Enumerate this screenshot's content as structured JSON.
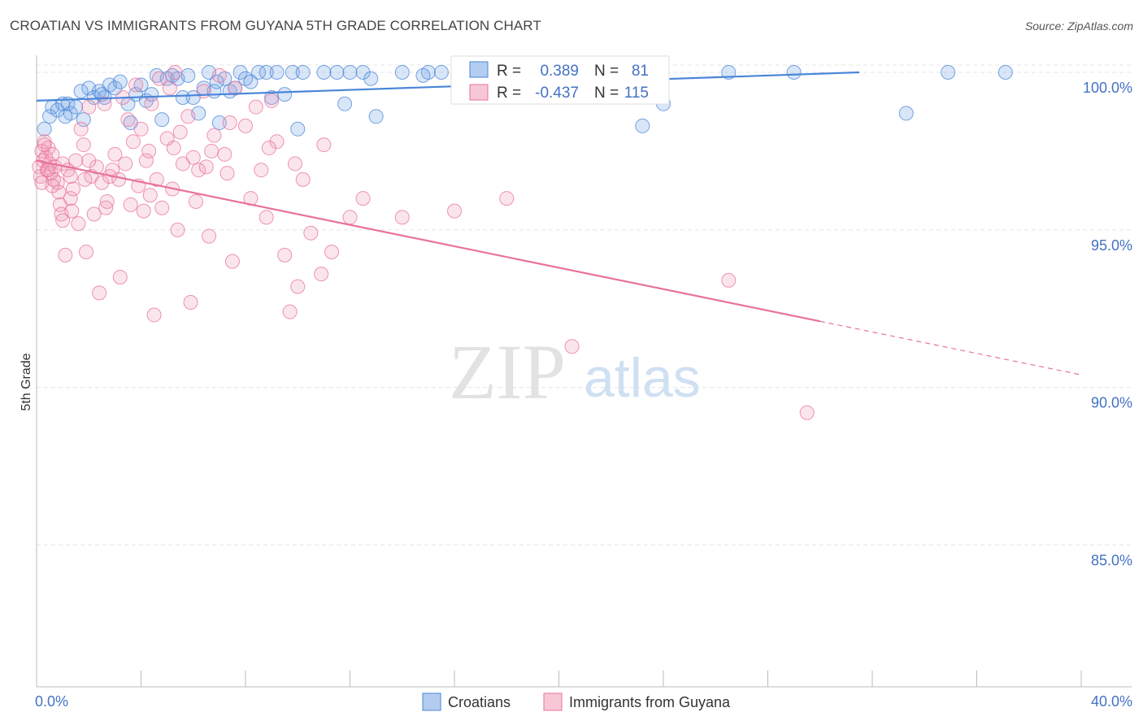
{
  "header": {
    "title": "CROATIAN VS IMMIGRANTS FROM GUYANA 5TH GRADE CORRELATION CHART",
    "source": "Source: ZipAtlas.com"
  },
  "watermark": {
    "zip": "ZIP",
    "atlas": "atlas"
  },
  "stats": {
    "croatians": {
      "r_label": "R =",
      "r_value": "0.389",
      "n_label": "N =",
      "n_value": "81"
    },
    "guyana": {
      "r_label": "R =",
      "r_value": "-0.437",
      "n_label": "N =",
      "n_value": "115"
    }
  },
  "legend": {
    "croatians": "Croatians",
    "guyana": "Immigrants from Guyana"
  },
  "chart_data": {
    "type": "scatter",
    "title": "CROATIAN VS IMMIGRANTS FROM GUYANA 5TH GRADE CORRELATION CHART",
    "xlabel": "",
    "ylabel": "5th Grade",
    "xlim": [
      0,
      40
    ],
    "ylim": [
      80.5,
      100.8
    ],
    "x_tick_labels": [
      "0.0%",
      "40.0%"
    ],
    "y_ticks": [
      100,
      95,
      90,
      85
    ],
    "y_tick_labels": [
      "100.0%",
      "95.0%",
      "90.0%",
      "85.0%"
    ],
    "grid": true,
    "legend_position": "bottom-center",
    "colors": {
      "croatians": "#4a86d8",
      "guyana": "#e8729a"
    },
    "series": [
      {
        "name": "Croatians",
        "color": "#4a86d8",
        "trend": {
          "x0": 0,
          "y0": 99.1,
          "x1": 31.5,
          "y1": 100.0
        },
        "points": [
          [
            0.3,
            98.2
          ],
          [
            0.5,
            98.6
          ],
          [
            0.6,
            98.9
          ],
          [
            0.8,
            98.8
          ],
          [
            1.0,
            99.0
          ],
          [
            1.2,
            99.0
          ],
          [
            1.3,
            98.7
          ],
          [
            1.5,
            98.9
          ],
          [
            1.7,
            99.4
          ],
          [
            1.8,
            98.5
          ],
          [
            2.0,
            99.5
          ],
          [
            2.2,
            99.2
          ],
          [
            2.4,
            99.4
          ],
          [
            2.6,
            99.2
          ],
          [
            2.8,
            99.6
          ],
          [
            3.0,
            99.5
          ],
          [
            3.2,
            99.7
          ],
          [
            3.5,
            99.0
          ],
          [
            3.6,
            98.4
          ],
          [
            3.8,
            99.3
          ],
          [
            4.0,
            99.6
          ],
          [
            4.2,
            99.1
          ],
          [
            4.4,
            99.3
          ],
          [
            4.6,
            99.9
          ],
          [
            4.8,
            98.5
          ],
          [
            5.0,
            99.8
          ],
          [
            5.2,
            99.9
          ],
          [
            5.4,
            99.8
          ],
          [
            5.6,
            99.2
          ],
          [
            5.8,
            99.9
          ],
          [
            6.0,
            99.2
          ],
          [
            6.2,
            98.7
          ],
          [
            6.4,
            99.5
          ],
          [
            6.6,
            100.0
          ],
          [
            6.8,
            99.4
          ],
          [
            7.0,
            98.4
          ],
          [
            7.2,
            99.8
          ],
          [
            7.4,
            99.4
          ],
          [
            7.6,
            99.5
          ],
          [
            7.8,
            100.0
          ],
          [
            8.0,
            99.8
          ],
          [
            8.2,
            99.7
          ],
          [
            8.5,
            100.0
          ],
          [
            8.8,
            100.0
          ],
          [
            9.0,
            99.2
          ],
          [
            9.2,
            100.0
          ],
          [
            9.5,
            99.3
          ],
          [
            9.8,
            100.0
          ],
          [
            10.0,
            98.2
          ],
          [
            10.2,
            100.0
          ],
          [
            11.0,
            100.0
          ],
          [
            11.5,
            100.0
          ],
          [
            12.0,
            100.0
          ],
          [
            11.8,
            99.0
          ],
          [
            12.5,
            100.0
          ],
          [
            12.8,
            99.8
          ],
          [
            13.0,
            98.6
          ],
          [
            14.0,
            100.0
          ],
          [
            15.0,
            100.0
          ],
          [
            15.5,
            100.0
          ],
          [
            16.5,
            100.0
          ],
          [
            17.0,
            100.0
          ],
          [
            17.8,
            100.0
          ],
          [
            18.5,
            100.0
          ],
          [
            19.0,
            99.6
          ],
          [
            19.5,
            99.8
          ],
          [
            20.0,
            100.0
          ],
          [
            21.0,
            100.0
          ],
          [
            22.0,
            100.0
          ],
          [
            23.0,
            99.9
          ],
          [
            23.2,
            98.3
          ],
          [
            24.0,
            99.0
          ],
          [
            26.5,
            100.0
          ],
          [
            29.0,
            100.0
          ],
          [
            33.3,
            98.7
          ],
          [
            34.9,
            100.0
          ],
          [
            37.1,
            100.0
          ],
          [
            1.1,
            98.6
          ],
          [
            2.5,
            99.3
          ],
          [
            6.9,
            99.7
          ],
          [
            14.8,
            99.9
          ]
        ]
      },
      {
        "name": "Immigrants from Guyana",
        "color": "#e8729a",
        "trend": {
          "x0": 0,
          "y0": 97.2,
          "x1": 30.0,
          "y1": 92.1,
          "dash_to_x": 40,
          "dash_to_y": 90.4
        },
        "points": [
          [
            0.1,
            97.0
          ],
          [
            0.15,
            96.7
          ],
          [
            0.2,
            97.5
          ],
          [
            0.25,
            97.2
          ],
          [
            0.3,
            97.8
          ],
          [
            0.35,
            97.3
          ],
          [
            0.4,
            96.9
          ],
          [
            0.45,
            97.6
          ],
          [
            0.5,
            97.1
          ],
          [
            0.55,
            96.8
          ],
          [
            0.6,
            97.4
          ],
          [
            0.65,
            96.6
          ],
          [
            0.7,
            97.0
          ],
          [
            0.8,
            96.5
          ],
          [
            0.85,
            96.2
          ],
          [
            0.9,
            95.8
          ],
          [
            0.95,
            95.5
          ],
          [
            1.0,
            95.3
          ],
          [
            1.0,
            97.1
          ],
          [
            1.1,
            94.2
          ],
          [
            1.2,
            96.9
          ],
          [
            1.3,
            96.0
          ],
          [
            1.35,
            95.6
          ],
          [
            1.4,
            96.3
          ],
          [
            1.5,
            97.2
          ],
          [
            1.6,
            95.2
          ],
          [
            1.7,
            98.2
          ],
          [
            1.8,
            97.7
          ],
          [
            1.9,
            94.3
          ],
          [
            2.0,
            98.9
          ],
          [
            2.1,
            96.7
          ],
          [
            2.2,
            95.5
          ],
          [
            2.3,
            97.0
          ],
          [
            2.4,
            93.0
          ],
          [
            2.5,
            96.5
          ],
          [
            2.6,
            99.0
          ],
          [
            2.7,
            95.9
          ],
          [
            2.8,
            96.7
          ],
          [
            3.0,
            97.4
          ],
          [
            3.2,
            93.5
          ],
          [
            3.3,
            99.2
          ],
          [
            3.4,
            97.1
          ],
          [
            3.5,
            98.5
          ],
          [
            3.6,
            95.8
          ],
          [
            3.8,
            99.6
          ],
          [
            3.9,
            96.4
          ],
          [
            4.0,
            98.2
          ],
          [
            4.1,
            95.6
          ],
          [
            4.2,
            97.2
          ],
          [
            4.4,
            99.0
          ],
          [
            4.5,
            92.3
          ],
          [
            4.6,
            96.6
          ],
          [
            4.7,
            99.8
          ],
          [
            4.8,
            95.7
          ],
          [
            5.0,
            97.9
          ],
          [
            5.1,
            99.5
          ],
          [
            5.2,
            96.3
          ],
          [
            5.3,
            100.0
          ],
          [
            5.4,
            95.0
          ],
          [
            5.6,
            97.1
          ],
          [
            5.8,
            98.6
          ],
          [
            5.9,
            92.7
          ],
          [
            6.0,
            97.3
          ],
          [
            6.1,
            95.9
          ],
          [
            6.2,
            96.9
          ],
          [
            6.4,
            99.4
          ],
          [
            6.5,
            97.0
          ],
          [
            6.6,
            94.8
          ],
          [
            6.8,
            98.0
          ],
          [
            7.0,
            99.9
          ],
          [
            7.2,
            97.4
          ],
          [
            7.3,
            96.8
          ],
          [
            7.5,
            94.0
          ],
          [
            7.6,
            99.5
          ],
          [
            8.0,
            98.3
          ],
          [
            8.2,
            96.0
          ],
          [
            8.4,
            98.9
          ],
          [
            8.6,
            96.9
          ],
          [
            8.8,
            95.4
          ],
          [
            9.0,
            99.1
          ],
          [
            9.2,
            97.8
          ],
          [
            9.5,
            94.2
          ],
          [
            9.7,
            92.4
          ],
          [
            9.9,
            97.1
          ],
          [
            10.0,
            93.2
          ],
          [
            10.2,
            96.6
          ],
          [
            10.5,
            94.9
          ],
          [
            10.9,
            93.6
          ],
          [
            11.0,
            97.7
          ],
          [
            11.3,
            94.3
          ],
          [
            12.0,
            95.4
          ],
          [
            12.5,
            96.0
          ],
          [
            14.0,
            95.4
          ],
          [
            16.0,
            95.6
          ],
          [
            18.0,
            96.0
          ],
          [
            20.5,
            91.3
          ],
          [
            26.5,
            93.4
          ],
          [
            29.5,
            89.2
          ],
          [
            0.3,
            97.7
          ],
          [
            0.6,
            96.4
          ],
          [
            1.3,
            96.7
          ],
          [
            2.0,
            97.2
          ],
          [
            2.9,
            96.9
          ],
          [
            3.7,
            97.8
          ],
          [
            4.3,
            97.5
          ],
          [
            5.5,
            98.1
          ],
          [
            6.7,
            97.5
          ],
          [
            7.4,
            98.4
          ],
          [
            8.9,
            97.6
          ],
          [
            0.45,
            96.9
          ],
          [
            1.85,
            96.6
          ],
          [
            2.65,
            95.7
          ],
          [
            3.15,
            96.6
          ],
          [
            4.35,
            96.1
          ],
          [
            5.25,
            97.6
          ],
          [
            0.2,
            96.5
          ]
        ]
      }
    ]
  }
}
